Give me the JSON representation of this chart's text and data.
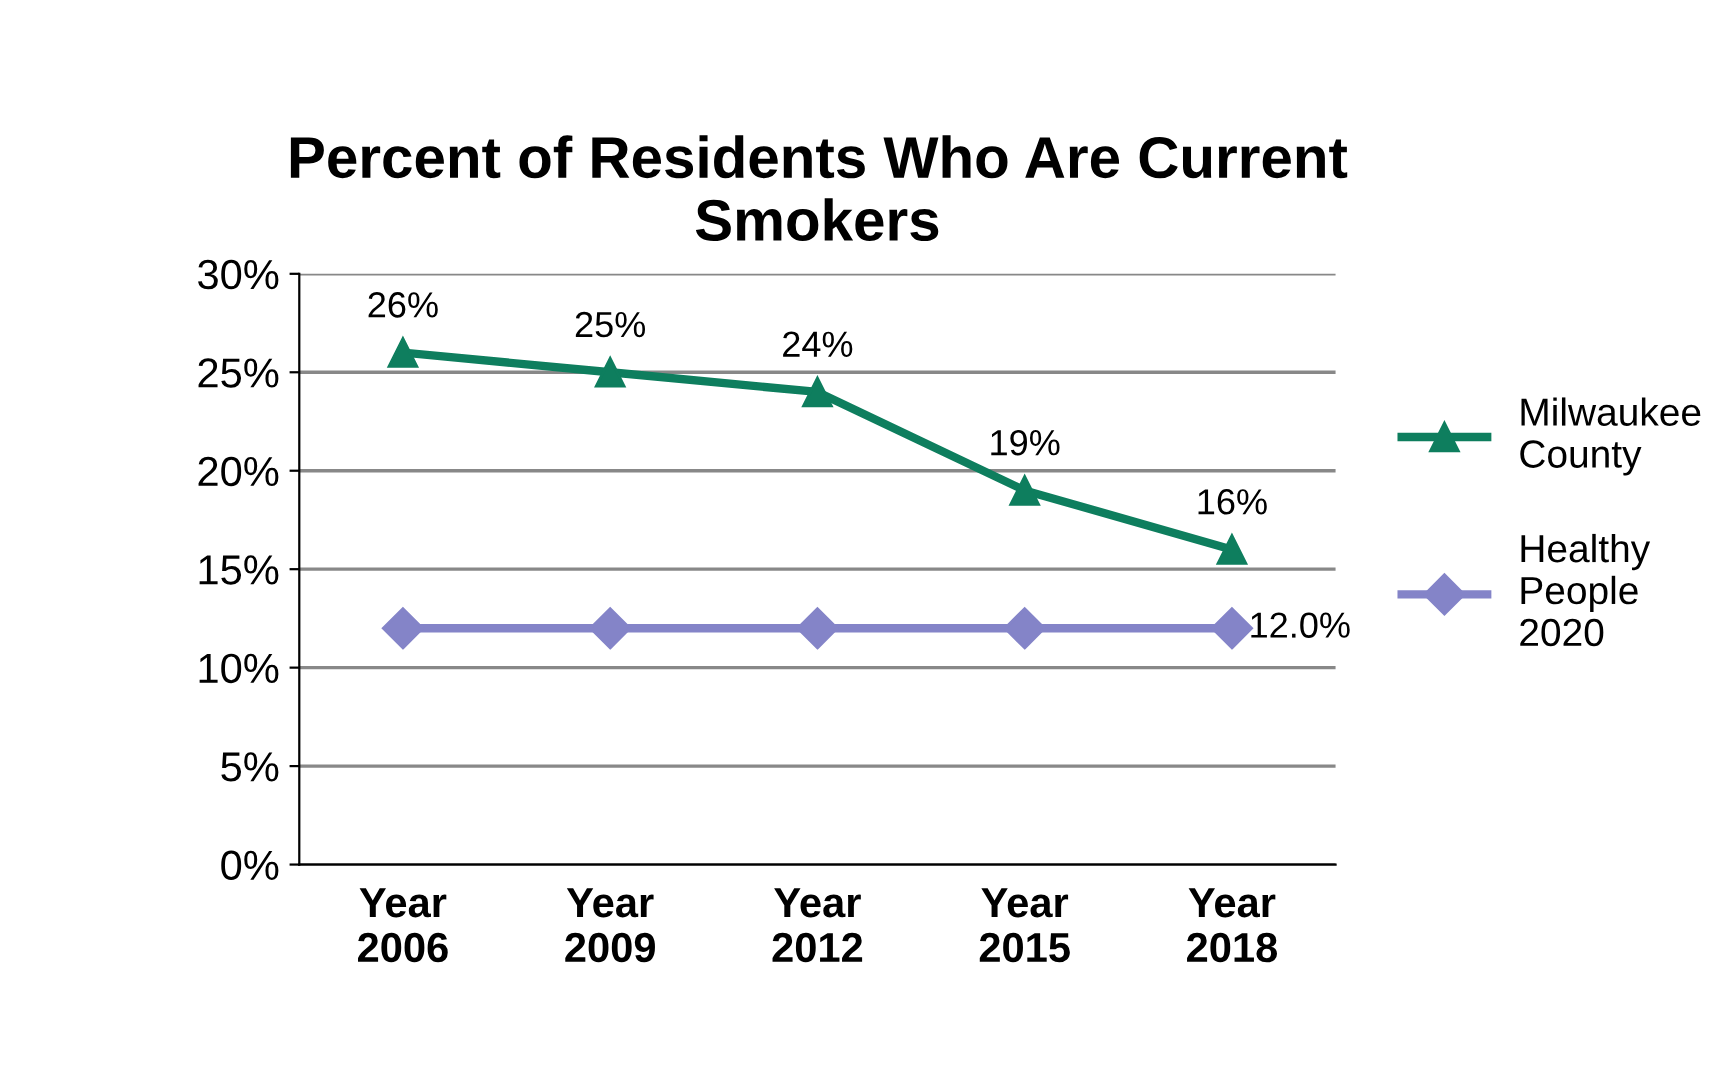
{
  "chart_data": {
    "type": "line",
    "title": "Percent of Residents Who Are Current\nSmokers",
    "categories": [
      "Year\n2006",
      "Year\n2009",
      "Year\n2012",
      "Year\n2015",
      "Year\n2018"
    ],
    "series": [
      {
        "name": "Milwaukee\nCounty",
        "color": "#0e7e5e",
        "marker": "triangle",
        "values": [
          26,
          25,
          24,
          19,
          16
        ],
        "value_labels": [
          "26%",
          "25%",
          "24%",
          "19%",
          "16%"
        ]
      },
      {
        "name": "Healthy\nPeople\n2020",
        "color": "#8484c8",
        "marker": "diamond",
        "values": [
          12,
          12,
          12,
          12,
          12
        ],
        "value_labels": [
          null,
          null,
          null,
          null,
          "12.0%"
        ]
      }
    ],
    "ylim": [
      0,
      30
    ],
    "yticks": [
      {
        "value": 0,
        "label": "0%"
      },
      {
        "value": 5,
        "label": "5%"
      },
      {
        "value": 10,
        "label": "10%"
      },
      {
        "value": 15,
        "label": "15%"
      },
      {
        "value": 20,
        "label": "20%"
      },
      {
        "value": 25,
        "label": "25%"
      },
      {
        "value": 30,
        "label": "30%"
      }
    ],
    "grid": "y",
    "legend": "right",
    "line_style": "solid"
  }
}
